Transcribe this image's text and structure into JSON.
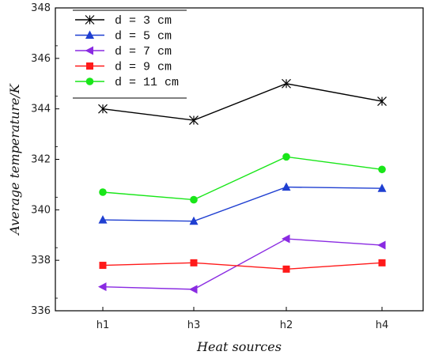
{
  "chart_data": {
    "type": "line",
    "title": "",
    "xlabel": "Heat sources",
    "ylabel": "Average temperature/K",
    "categories": [
      "h1",
      "h3",
      "h2",
      "h4"
    ],
    "ylim": [
      336,
      348
    ],
    "yticks": [
      "336",
      "338",
      "340",
      "342",
      "344",
      "346",
      "348"
    ],
    "grid": false,
    "legend_position": "top-left",
    "series": [
      {
        "name": "d = 3 cm",
        "color": "#000000",
        "marker": "x-star",
        "values": [
          344.0,
          343.55,
          345.0,
          344.3
        ]
      },
      {
        "name": "d = 5 cm",
        "color": "#1f3fd1",
        "marker": "triangle-up",
        "values": [
          339.6,
          339.55,
          340.9,
          340.85
        ]
      },
      {
        "name": "d = 7 cm",
        "color": "#8a2be2",
        "marker": "triangle-left",
        "values": [
          336.95,
          336.85,
          338.85,
          338.6
        ]
      },
      {
        "name": "d = 9 cm",
        "color": "#ff1a1a",
        "marker": "square",
        "values": [
          337.8,
          337.9,
          337.65,
          337.9
        ]
      },
      {
        "name": "d = 11 cm",
        "color": "#19e619",
        "marker": "circle",
        "values": [
          340.7,
          340.4,
          342.1,
          341.6
        ]
      }
    ]
  }
}
